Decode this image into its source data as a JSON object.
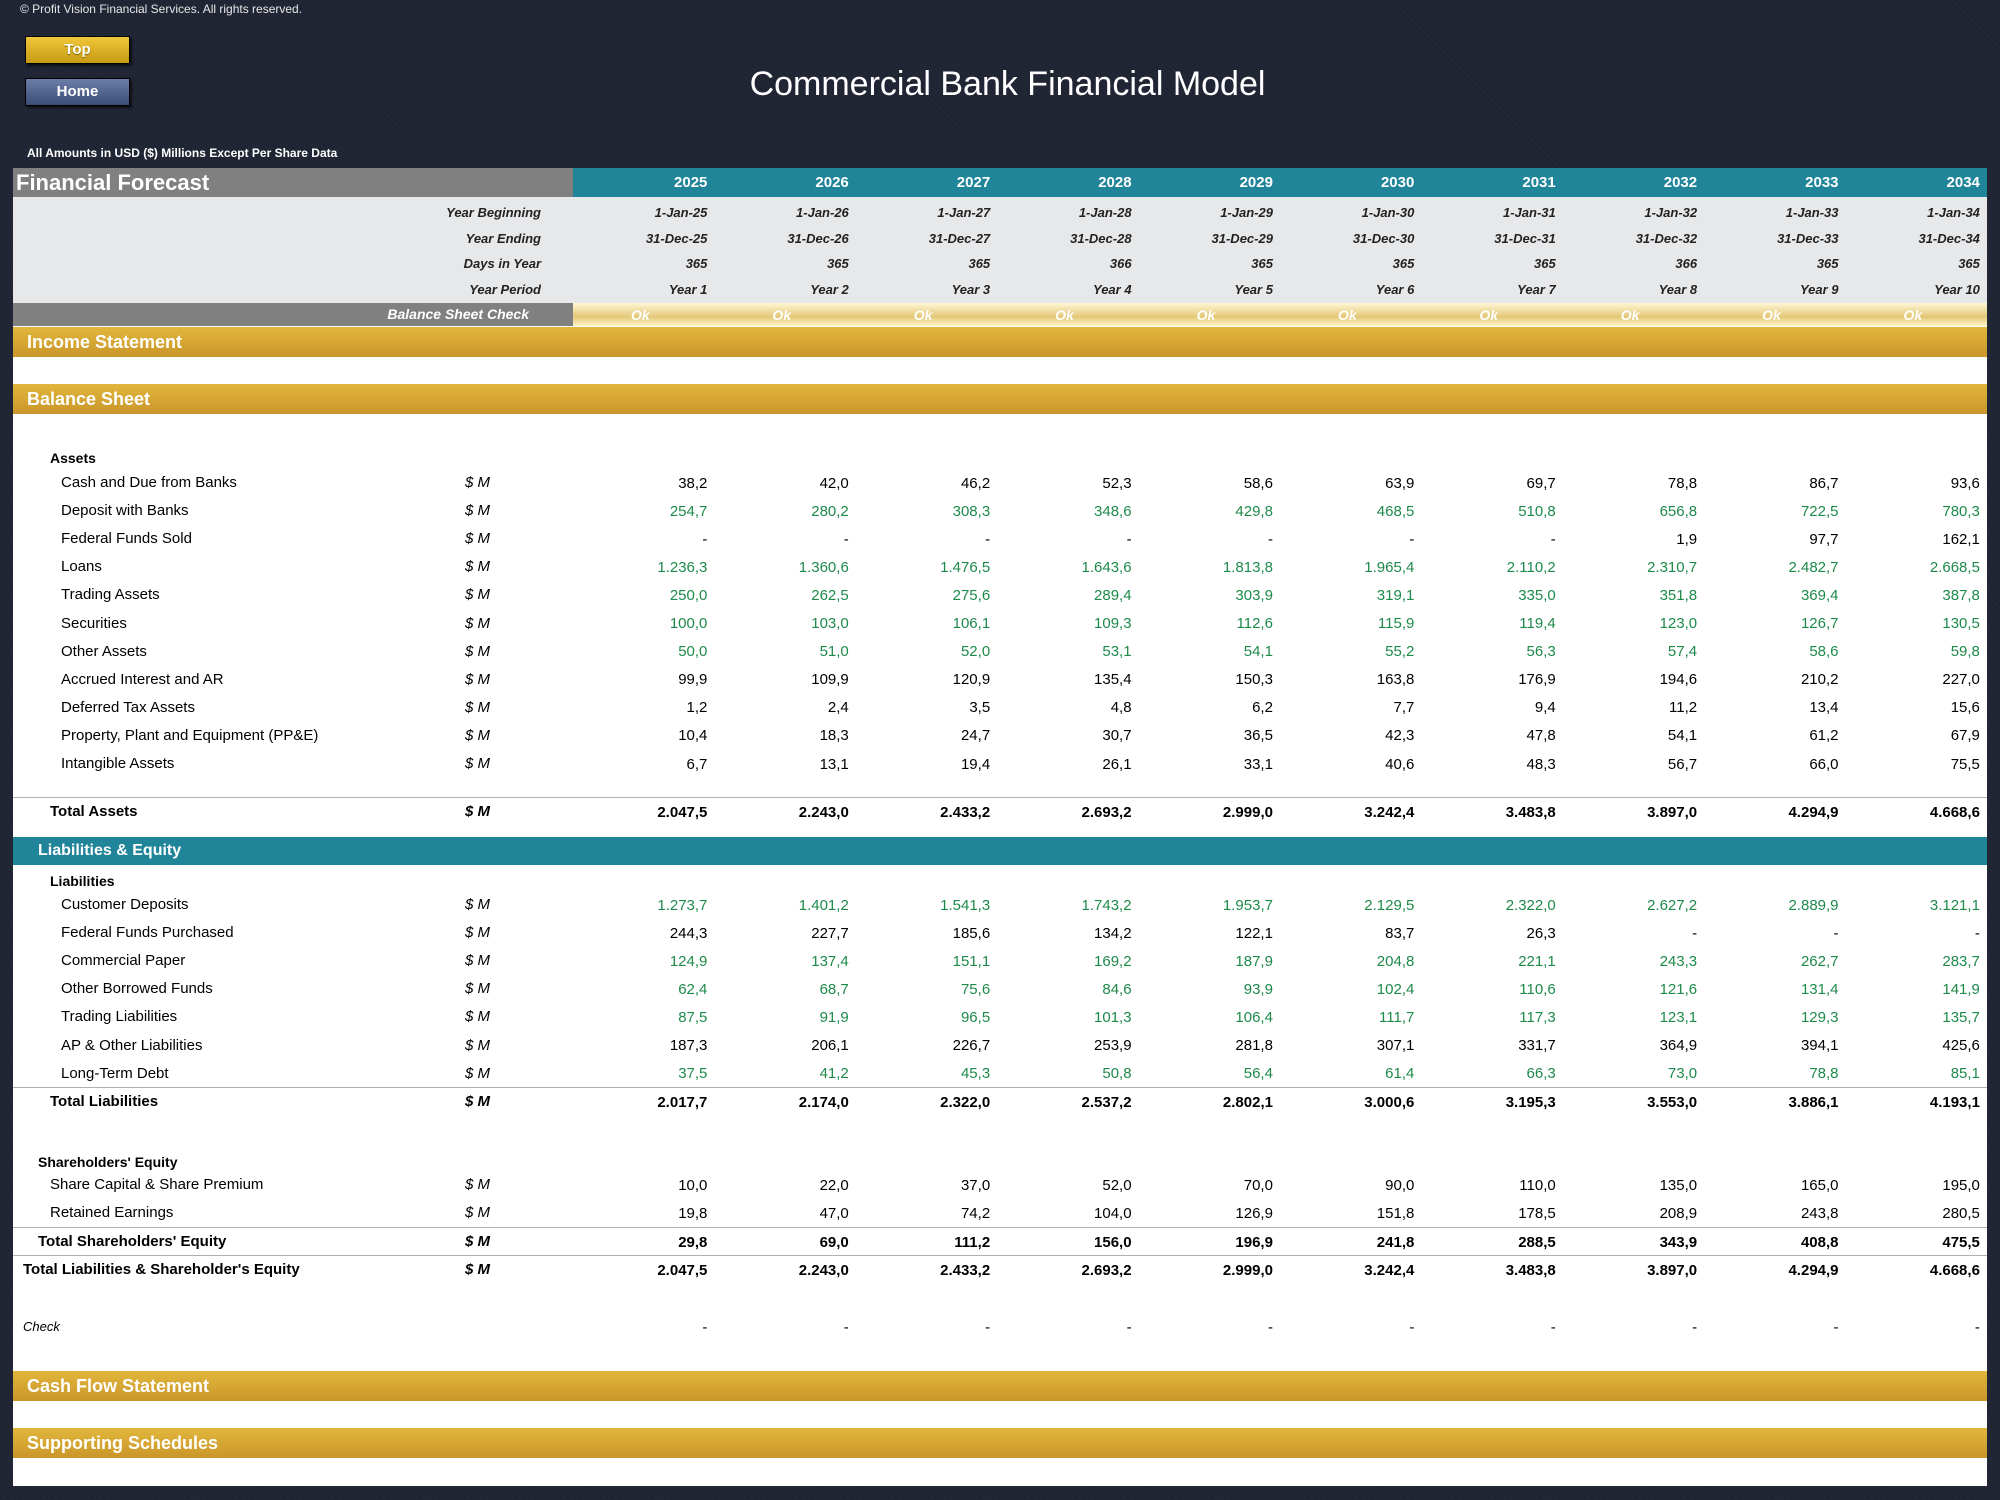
{
  "copyright": "© Profit Vision Financial Services. All rights reserved.",
  "nav": {
    "top_label": "Top",
    "home_label": "Home"
  },
  "title": "Commercial Bank Financial Model",
  "units_note": "All Amounts in  USD ($) Millions Except Per Share Data",
  "forecast": {
    "label": "Financial Forecast",
    "years": [
      "2025",
      "2026",
      "2027",
      "2028",
      "2029",
      "2030",
      "2031",
      "2032",
      "2033",
      "2034"
    ],
    "info_rows": [
      {
        "label": "Year Beginning",
        "values": [
          "1-Jan-25",
          "1-Jan-26",
          "1-Jan-27",
          "1-Jan-28",
          "1-Jan-29",
          "1-Jan-30",
          "1-Jan-31",
          "1-Jan-32",
          "1-Jan-33",
          "1-Jan-34"
        ]
      },
      {
        "label": "Year Ending",
        "values": [
          "31-Dec-25",
          "31-Dec-26",
          "31-Dec-27",
          "31-Dec-28",
          "31-Dec-29",
          "31-Dec-30",
          "31-Dec-31",
          "31-Dec-32",
          "31-Dec-33",
          "31-Dec-34"
        ]
      },
      {
        "label": "Days in Year",
        "values": [
          "365",
          "365",
          "365",
          "366",
          "365",
          "365",
          "365",
          "366",
          "365",
          "365"
        ]
      },
      {
        "label": "Year Period",
        "values": [
          "Year 1",
          "Year 2",
          "Year 3",
          "Year 4",
          "Year 5",
          "Year 6",
          "Year 7",
          "Year 8",
          "Year 9",
          "Year 10"
        ]
      }
    ],
    "balance_check": {
      "label": "Balance Sheet Check",
      "values": [
        "Ok",
        "Ok",
        "Ok",
        "Ok",
        "Ok",
        "Ok",
        "Ok",
        "Ok",
        "Ok",
        "Ok"
      ]
    }
  },
  "sections": {
    "income_statement": "Income Statement",
    "balance_sheet": "Balance Sheet",
    "assets_heading": "Assets",
    "liabilities_equity": "Liabilities & Equity",
    "liabilities_heading": "Liabilities",
    "equity_heading": "Shareholders' Equity",
    "cash_flow": "Cash Flow Statement",
    "supporting": "Supporting Schedules"
  },
  "assets": [
    {
      "name": "Cash and Due from Banks",
      "unit": "$ M",
      "values": [
        "38,2",
        "42,0",
        "46,2",
        "52,3",
        "58,6",
        "63,9",
        "69,7",
        "78,8",
        "86,7",
        "93,6"
      ]
    },
    {
      "name": "Deposit with Banks",
      "unit": "$ M",
      "values": [
        "254,7",
        "280,2",
        "308,3",
        "348,6",
        "429,8",
        "468,5",
        "510,8",
        "656,8",
        "722,5",
        "780,3"
      ]
    },
    {
      "name": "Federal Funds Sold",
      "unit": "$ M",
      "values": [
        "-",
        "-",
        "-",
        "-",
        "-",
        "-",
        "-",
        "1,9",
        "97,7",
        "162,1"
      ]
    },
    {
      "name": "Loans",
      "unit": "$ M",
      "values": [
        "1.236,3",
        "1.360,6",
        "1.476,5",
        "1.643,6",
        "1.813,8",
        "1.965,4",
        "2.110,2",
        "2.310,7",
        "2.482,7",
        "2.668,5"
      ]
    },
    {
      "name": "Trading Assets",
      "unit": "$ M",
      "values": [
        "250,0",
        "262,5",
        "275,6",
        "289,4",
        "303,9",
        "319,1",
        "335,0",
        "351,8",
        "369,4",
        "387,8"
      ]
    },
    {
      "name": "Securities",
      "unit": "$ M",
      "values": [
        "100,0",
        "103,0",
        "106,1",
        "109,3",
        "112,6",
        "115,9",
        "119,4",
        "123,0",
        "126,7",
        "130,5"
      ]
    },
    {
      "name": "Other Assets",
      "unit": "$ M",
      "values": [
        "50,0",
        "51,0",
        "52,0",
        "53,1",
        "54,1",
        "55,2",
        "56,3",
        "57,4",
        "58,6",
        "59,8"
      ]
    },
    {
      "name": "Accrued Interest and AR",
      "unit": "$ M",
      "values": [
        "99,9",
        "109,9",
        "120,9",
        "135,4",
        "150,3",
        "163,8",
        "176,9",
        "194,6",
        "210,2",
        "227,0"
      ]
    },
    {
      "name": "Deferred Tax Assets",
      "unit": "$ M",
      "values": [
        "1,2",
        "2,4",
        "3,5",
        "4,8",
        "6,2",
        "7,7",
        "9,4",
        "11,2",
        "13,4",
        "15,6"
      ]
    },
    {
      "name": "Property, Plant and Equipment (PP&E)",
      "unit": "$ M",
      "values": [
        "10,4",
        "18,3",
        "24,7",
        "30,7",
        "36,5",
        "42,3",
        "47,8",
        "54,1",
        "61,2",
        "67,9"
      ]
    },
    {
      "name": "Intangible Assets",
      "unit": "$ M",
      "values": [
        "6,7",
        "13,1",
        "19,4",
        "26,1",
        "33,1",
        "40,6",
        "48,3",
        "56,7",
        "66,0",
        "75,5"
      ]
    }
  ],
  "total_assets": {
    "name": "Total Assets",
    "unit": "$ M",
    "values": [
      "2.047,5",
      "2.243,0",
      "2.433,2",
      "2.693,2",
      "2.999,0",
      "3.242,4",
      "3.483,8",
      "3.897,0",
      "4.294,9",
      "4.668,6"
    ]
  },
  "liabilities": [
    {
      "name": "Customer Deposits",
      "unit": "$ M",
      "values": [
        "1.273,7",
        "1.401,2",
        "1.541,3",
        "1.743,2",
        "1.953,7",
        "2.129,5",
        "2.322,0",
        "2.627,2",
        "2.889,9",
        "3.121,1"
      ]
    },
    {
      "name": "Federal Funds Purchased",
      "unit": "$ M",
      "values": [
        "244,3",
        "227,7",
        "185,6",
        "134,2",
        "122,1",
        "83,7",
        "26,3",
        "-",
        "-",
        "-"
      ]
    },
    {
      "name": "Commercial Paper",
      "unit": "$ M",
      "values": [
        "124,9",
        "137,4",
        "151,1",
        "169,2",
        "187,9",
        "204,8",
        "221,1",
        "243,3",
        "262,7",
        "283,7"
      ]
    },
    {
      "name": "Other Borrowed Funds",
      "unit": "$ M",
      "values": [
        "62,4",
        "68,7",
        "75,6",
        "84,6",
        "93,9",
        "102,4",
        "110,6",
        "121,6",
        "131,4",
        "141,9"
      ]
    },
    {
      "name": "Trading Liabilities",
      "unit": "$ M",
      "values": [
        "87,5",
        "91,9",
        "96,5",
        "101,3",
        "106,4",
        "111,7",
        "117,3",
        "123,1",
        "129,3",
        "135,7"
      ]
    },
    {
      "name": "AP & Other Liabilities",
      "unit": "$ M",
      "values": [
        "187,3",
        "206,1",
        "226,7",
        "253,9",
        "281,8",
        "307,1",
        "331,7",
        "364,9",
        "394,1",
        "425,6"
      ]
    },
    {
      "name": "Long-Term Debt",
      "unit": "$ M",
      "values": [
        "37,5",
        "41,2",
        "45,3",
        "50,8",
        "56,4",
        "61,4",
        "66,3",
        "73,0",
        "78,8",
        "85,1"
      ]
    }
  ],
  "total_liabilities": {
    "name": "Total Liabilities",
    "unit": "$ M",
    "values": [
      "2.017,7",
      "2.174,0",
      "2.322,0",
      "2.537,2",
      "2.802,1",
      "3.000,6",
      "3.195,3",
      "3.553,0",
      "3.886,1",
      "4.193,1"
    ]
  },
  "equity": [
    {
      "name": "Share Capital & Share Premium",
      "unit": "$ M",
      "values": [
        "10,0",
        "22,0",
        "37,0",
        "52,0",
        "70,0",
        "90,0",
        "110,0",
        "135,0",
        "165,0",
        "195,0"
      ]
    },
    {
      "name": "Retained Earnings",
      "unit": "$ M",
      "values": [
        "19,8",
        "47,0",
        "74,2",
        "104,0",
        "126,9",
        "151,8",
        "178,5",
        "208,9",
        "243,8",
        "280,5"
      ]
    }
  ],
  "total_equity": {
    "name": "Total Shareholders' Equity",
    "unit": "$ M",
    "values": [
      "29,8",
      "69,0",
      "111,2",
      "156,0",
      "196,9",
      "241,8",
      "288,5",
      "343,9",
      "408,8",
      "475,5"
    ]
  },
  "total_liab_equity": {
    "name": "Total Liabilities & Shareholder's Equity",
    "unit": "$ M",
    "values": [
      "2.047,5",
      "2.243,0",
      "2.433,2",
      "2.693,2",
      "2.999,0",
      "3.242,4",
      "3.483,8",
      "3.897,0",
      "4.294,9",
      "4.668,6"
    ]
  },
  "check_row": {
    "name": "Check",
    "values": [
      "-",
      "-",
      "-",
      "-",
      "-",
      "-",
      "-",
      "-",
      "-",
      "-"
    ]
  },
  "colors": {
    "green_input": "#1e8a4a",
    "teal": "#21859a",
    "gold": "#d4a830",
    "background": "#1f2433"
  }
}
